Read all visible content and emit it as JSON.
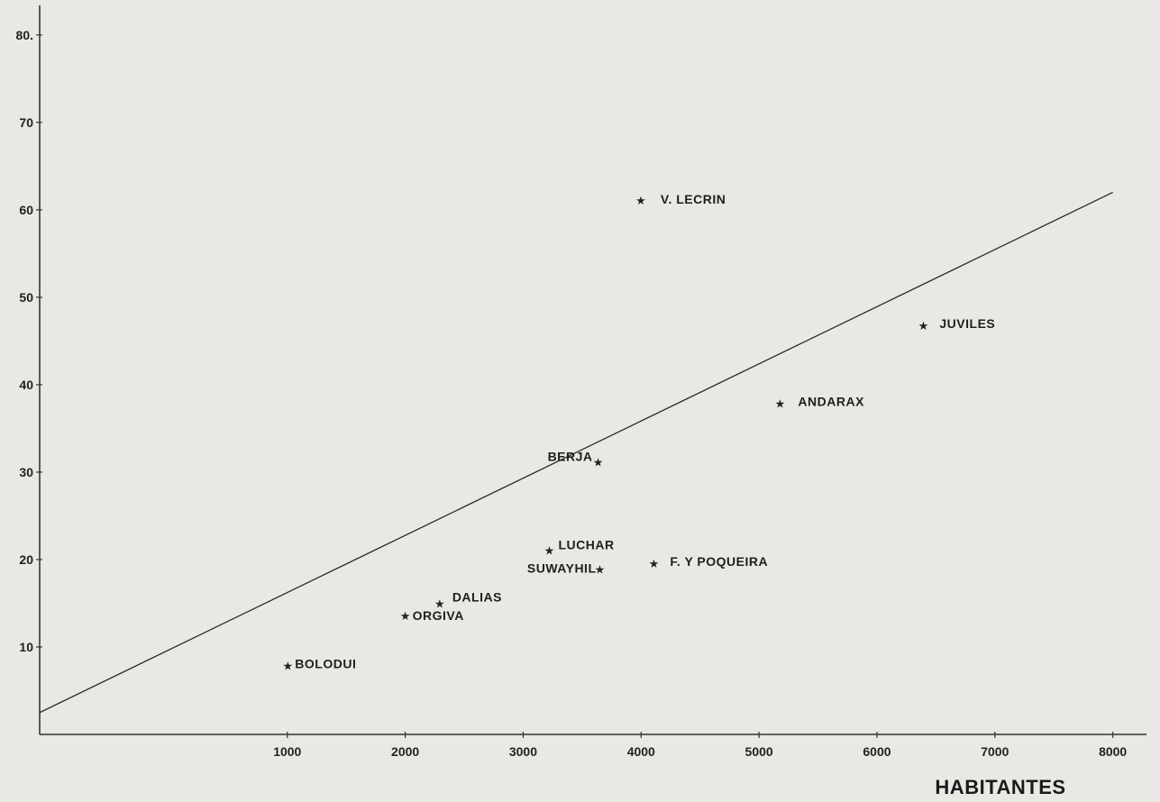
{
  "chart_data": {
    "type": "scatter",
    "title": "",
    "xlabel": "HABITANTES",
    "ylabel": "",
    "xlim": [
      -1100,
      8400
    ],
    "ylim": [
      0,
      84
    ],
    "x_ticks": [
      1000,
      2000,
      3000,
      4000,
      5000,
      6000,
      7000,
      8000
    ],
    "y_ticks": [
      10,
      20,
      30,
      40,
      50,
      60,
      70,
      80
    ],
    "y_tick_labels": [
      "10",
      "20",
      "30",
      "40",
      "50",
      "60",
      "70",
      "80."
    ],
    "grid": false,
    "marker": "★",
    "points": [
      {
        "label": "V. LECRIN",
        "x": 3997,
        "y": 61.1
      },
      {
        "label": "JUVILES",
        "x": 6393,
        "y": 46.8
      },
      {
        "label": "ANDARAX",
        "x": 5178,
        "y": 37.9
      },
      {
        "label": "BERJA",
        "x": 3635,
        "y": 31.2
      },
      {
        "label": "LUCHAR",
        "x": 3222,
        "y": 21.1
      },
      {
        "label": "SUWAYHIL",
        "x": 3650,
        "y": 18.9
      },
      {
        "label": "F. Y POQUEIRA",
        "x": 4108,
        "y": 19.6
      },
      {
        "label": "DALIAS",
        "x": 2292,
        "y": 15.0
      },
      {
        "label": "ORGIVA",
        "x": 2000,
        "y": 13.6
      },
      {
        "label": "BOLODUI",
        "x": 1004,
        "y": 7.9
      }
    ],
    "trendline": {
      "x": [
        -1100,
        8000
      ],
      "y": [
        2.5,
        62.0
      ]
    }
  }
}
